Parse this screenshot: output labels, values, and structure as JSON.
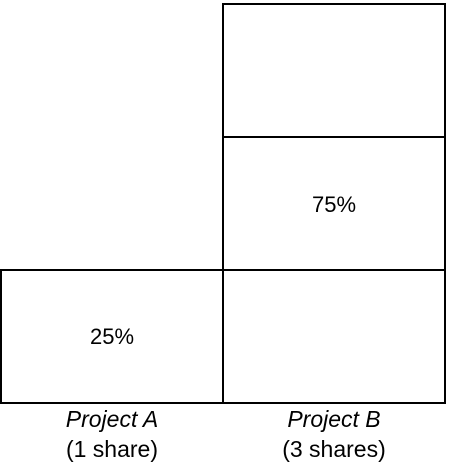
{
  "projects": [
    {
      "name": "Project A",
      "shares": "(1 share)",
      "percent": "25%"
    },
    {
      "name": "Project B",
      "shares": "(3 shares)",
      "percent": "75%"
    }
  ]
}
